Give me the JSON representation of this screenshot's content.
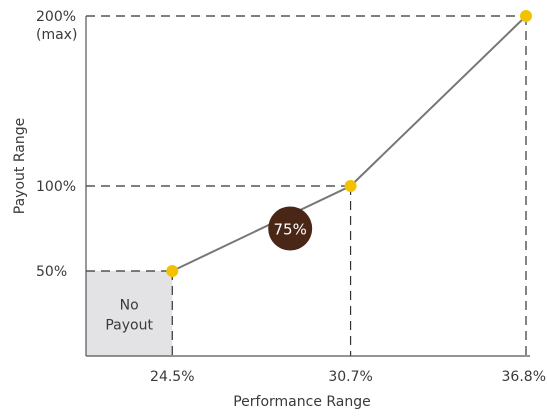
{
  "chart_data": {
    "type": "line",
    "xlabel": "Performance Range",
    "ylabel": "Payout Range",
    "x_ticks": [
      {
        "value": 24.5,
        "label": "24.5%"
      },
      {
        "value": 30.7,
        "label": "30.7%"
      },
      {
        "value": 36.8,
        "label": "36.8%"
      }
    ],
    "y_ticks": [
      {
        "value": 50,
        "label": "50%"
      },
      {
        "value": 100,
        "label": "100%"
      },
      {
        "value": 200,
        "label": "200%",
        "sublabel": "(max)"
      }
    ],
    "series": [
      {
        "points": [
          {
            "x": 24.5,
            "y": 50
          },
          {
            "x": 30.7,
            "y": 100
          },
          {
            "x": 36.8,
            "y": 200
          }
        ]
      }
    ],
    "annotations": [
      {
        "type": "badge",
        "text": "75%",
        "x": 28.6,
        "y": 75
      },
      {
        "type": "shaded-region",
        "label_line1": "No",
        "label_line2": "Payout",
        "x_range": [
          21.5,
          24.5
        ],
        "y_range": [
          0,
          50
        ]
      }
    ],
    "xlim": [
      21.5,
      36.8
    ],
    "ylim": [
      0,
      200
    ],
    "grid": false
  },
  "colors": {
    "line": "#777777",
    "point": "#f2c200",
    "badge": "#4a2617",
    "badge_text": "#ffffff",
    "region": "#e3e3e5",
    "guide": "#333333",
    "axis": "#555555"
  }
}
